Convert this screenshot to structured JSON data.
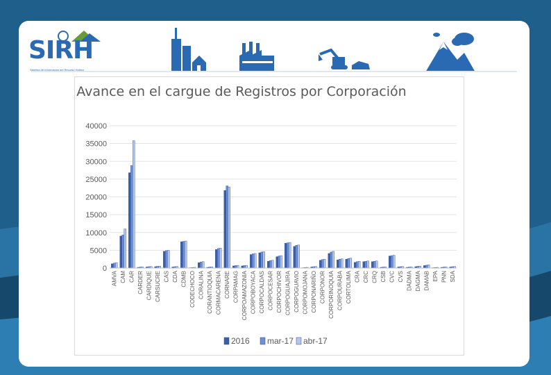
{
  "brand": {
    "name": "SIRH",
    "tagline": "Sistema de Información del Recurso Hídrico"
  },
  "colors": {
    "background": "#1f5f8b",
    "accent": "#2a6ab2",
    "series_2016": "#3a5ea8",
    "series_mar17": "#6d8fd6",
    "series_abr17": "#b4c6ee"
  },
  "header_icons": [
    "city-buildings-icon",
    "factory-icon",
    "excavator-icon",
    "mountains-icon"
  ],
  "chart_data": {
    "type": "bar",
    "title": "Avance en el cargue de Registros por Corporación",
    "xlabel": "",
    "ylabel": "",
    "ylim": [
      0,
      40000
    ],
    "yticks": [
      0,
      5000,
      10000,
      15000,
      20000,
      25000,
      30000,
      35000,
      40000
    ],
    "grid": true,
    "legend": "bottom",
    "categories": [
      "AMVA",
      "CAM",
      "CAR",
      "CARDER",
      "CARDIQUE",
      "CARSUCRE",
      "CAS",
      "CDA",
      "CDMB",
      "CODECHOCO",
      "CORALINA",
      "CORANTIOQUIA",
      "CORMACARENA",
      "CORNARE",
      "CORPAMAG",
      "CORPOAMAZONIA",
      "CORPOBOYACA",
      "CORPOCALDAS",
      "CORPOCESAR",
      "CORPOCHIVOR",
      "CORPOGUAJIRA",
      "CORPOGUAVIO",
      "CORPOMOJANA",
      "CORPONARIÑO",
      "CORPONOR",
      "CORPORINOQUIA",
      "CORPOURABA",
      "CORTOLIMA",
      "CRA",
      "CRC",
      "CRQ",
      "CSB",
      "CVC",
      "CVS",
      "DADMA",
      "DAGMA",
      "DAMAB",
      "EPA",
      "PNN",
      "SDA"
    ],
    "series": [
      {
        "name": "2016",
        "values": [
          1200,
          9000,
          26800,
          200,
          300,
          400,
          4700,
          300,
          7400,
          100,
          1500,
          200,
          5200,
          21800,
          600,
          600,
          3800,
          4300,
          1900,
          3200,
          7000,
          6100,
          100,
          300,
          2200,
          4100,
          2300,
          2500,
          1600,
          1800,
          1800,
          200,
          3400,
          300,
          200,
          400,
          700,
          100,
          200,
          300
        ]
      },
      {
        "name": "mar-17",
        "values": [
          1400,
          9300,
          28800,
          300,
          400,
          500,
          4900,
          400,
          7500,
          150,
          1700,
          300,
          5500,
          23100,
          700,
          700,
          4000,
          4500,
          2100,
          3400,
          7100,
          6400,
          150,
          400,
          2400,
          4500,
          2500,
          2700,
          1800,
          1900,
          1900,
          300,
          3500,
          400,
          300,
          500,
          800,
          150,
          300,
          400
        ]
      },
      {
        "name": "abr-17",
        "values": [
          1500,
          11000,
          35800,
          350,
          450,
          550,
          5000,
          450,
          7600,
          200,
          1800,
          350,
          5600,
          22800,
          750,
          750,
          4100,
          4600,
          2200,
          3500,
          7200,
          6500,
          200,
          450,
          2500,
          4700,
          2600,
          2800,
          1900,
          2000,
          2000,
          350,
          3600,
          450,
          350,
          550,
          900,
          200,
          350,
          450
        ]
      }
    ]
  }
}
